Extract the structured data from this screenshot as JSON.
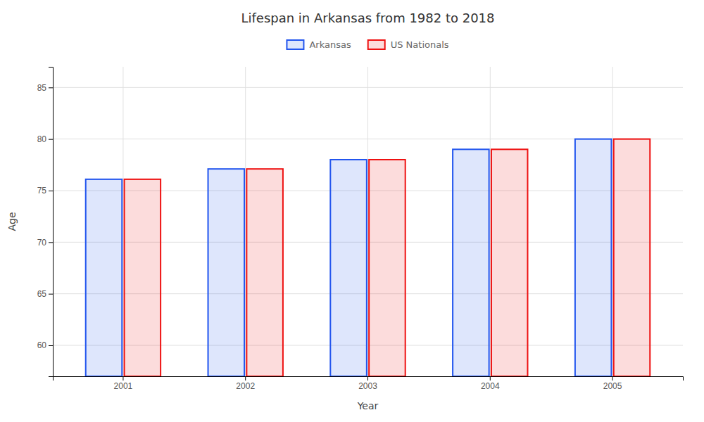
{
  "chart_data": {
    "type": "bar",
    "title": "Lifespan in Arkansas from 1982 to 2018",
    "x_label": "Year",
    "y_label": "Age",
    "categories": [
      "2001",
      "2002",
      "2003",
      "2004",
      "2005"
    ],
    "series": [
      {
        "name": "Arkansas",
        "color": "#2255ee",
        "values": [
          76.1,
          77.1,
          78.0,
          79.0,
          80.0
        ]
      },
      {
        "name": "US Nationals",
        "color": "#ee1111",
        "values": [
          76.1,
          77.1,
          78.0,
          79.0,
          80.0
        ]
      }
    ],
    "ylim": [
      57,
      87
    ],
    "yticks": [
      60,
      65,
      70,
      75,
      80,
      85
    ],
    "grid": true,
    "legend": "top"
  }
}
